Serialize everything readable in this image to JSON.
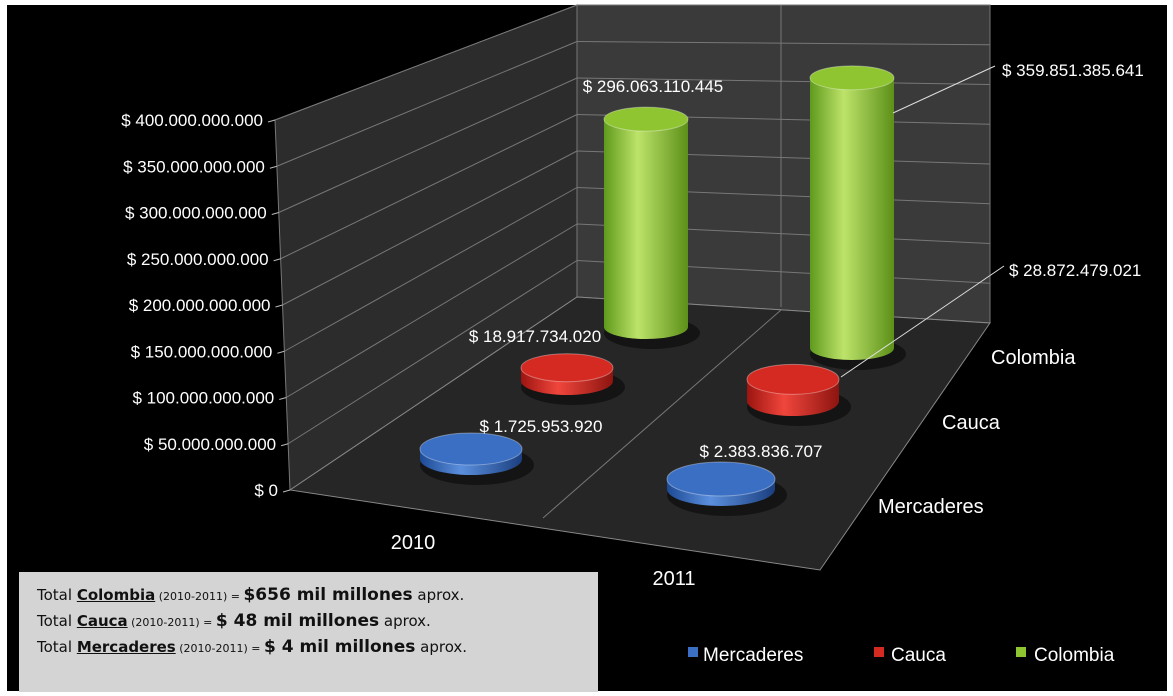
{
  "chart_data": {
    "type": "bar",
    "style": "3d-cylinder",
    "categories": [
      "2010",
      "2011"
    ],
    "series": [
      {
        "name": "Mercaderes",
        "color": "#3a6fc4",
        "values": [
          1725953920,
          2383836707
        ],
        "labels": [
          "$ 1.725.953.920",
          "$ 2.383.836.707"
        ]
      },
      {
        "name": "Cauca",
        "color": "#d42a22",
        "values": [
          18917734020,
          28872479021
        ],
        "labels": [
          "$ 18.917.734.020",
          "$ 28.872.479.021"
        ]
      },
      {
        "name": "Colombia",
        "color": "#8fc531",
        "values": [
          296063110445,
          359851385641
        ],
        "labels": [
          "$ 296.063.110.445",
          "$ 359.851.385.641"
        ]
      }
    ],
    "ylim": [
      0,
      400000000000
    ],
    "yticks": [
      "$ 0",
      "$ 50.000.000.000",
      "$ 100.000.000.000",
      "$ 150.000.000.000",
      "$ 200.000.000.000",
      "$ 250.000.000.000",
      "$ 300.000.000.000",
      "$ 350.000.000.000",
      "$ 400.000.000.000"
    ],
    "depth_labels": [
      "Colombia",
      "Cauca",
      "Mercaderes"
    ],
    "grid": true,
    "legend": "bottom-right",
    "background": "#000000"
  },
  "notes": [
    {
      "prefix": "Total ",
      "name": "Colombia",
      "period": " (2010-2011) = ",
      "amount": "$656 mil millones",
      "suffix": " aprox."
    },
    {
      "prefix": "Total ",
      "name": "Cauca",
      "period": " (2010-2011) = ",
      "amount": "$ 48 mil millones",
      "suffix": " aprox."
    },
    {
      "prefix": "Total ",
      "name": "Mercaderes",
      "period": " (2010-2011) = ",
      "amount": "$ 4 mil millones",
      "suffix": " aprox."
    }
  ]
}
